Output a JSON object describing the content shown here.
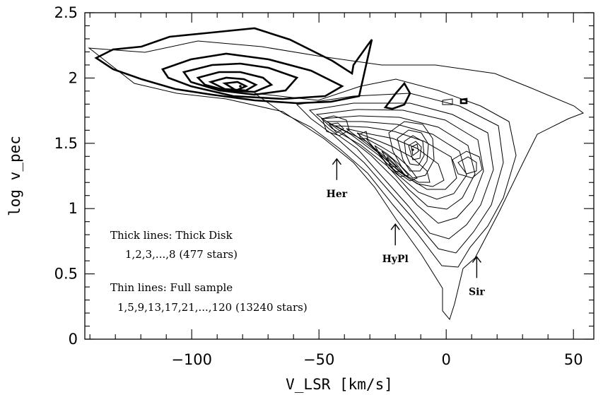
{
  "chart_data": {
    "type": "contour",
    "xlabel": "V_LSR [km/s]",
    "ylabel": "log v_pec",
    "xlim": [
      -142,
      58
    ],
    "ylim": [
      0,
      2.5
    ],
    "x_ticks": [
      -100,
      -50,
      0,
      50
    ],
    "x_tick_labels": [
      "−100",
      "−50",
      "0",
      "50"
    ],
    "y_ticks": [
      0,
      0.5,
      1,
      1.5,
      2,
      2.5
    ],
    "y_tick_labels": [
      "0",
      "0.5",
      "1",
      "1.5",
      "2",
      "2.5"
    ],
    "series": [
      {
        "name": "Thick lines: Thick Disk",
        "levels": "1,2,3,...,8 (477 stars)",
        "line_style": "thick"
      },
      {
        "name": "Thin lines: Full sample",
        "levels": "1,5,9,13,17,21,...,120 (13240 stars)",
        "line_style": "thin"
      }
    ],
    "legend_text": {
      "thick_title": "Thick lines: Thick Disk",
      "thick_levels": "1,2,3,...,8 (477 stars)",
      "thin_title": "Thin lines: Full sample",
      "thin_levels": "1,5,9,13,17,21,...,120 (13240 stars)"
    },
    "annotations": [
      {
        "text": "Her",
        "x": -43,
        "y": 1.5
      },
      {
        "text": "HyPl",
        "x": -20,
        "y": 1.0
      },
      {
        "text": "Sir",
        "x": 12,
        "y": 0.75
      }
    ]
  }
}
